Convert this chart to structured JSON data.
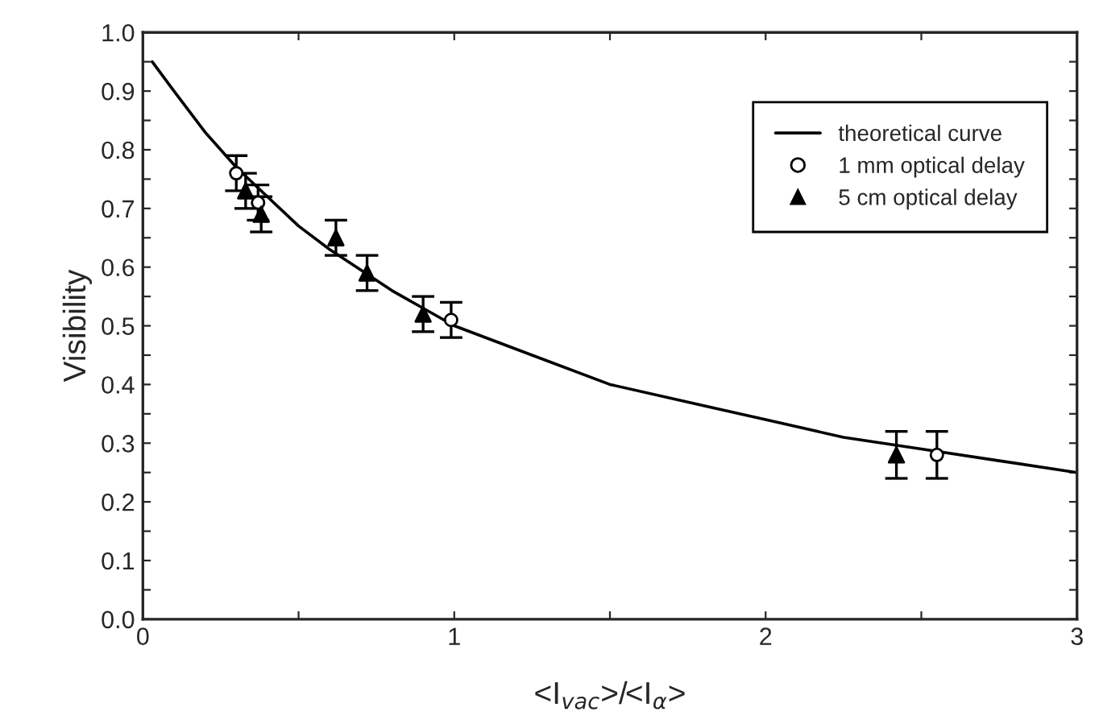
{
  "chart_data": {
    "type": "line",
    "xlabel": "<I$_{vac}$>/<I$_{α}$>",
    "ylabel": "Visibility",
    "xlim": [
      0,
      3
    ],
    "ylim": [
      0,
      1.0
    ],
    "xticks": [
      0,
      {
        "value": 0.5,
        "label": null
      },
      1,
      {
        "value": 1.5,
        "label": null
      },
      2,
      {
        "value": 2.5,
        "label": null
      },
      3
    ],
    "yticks": [
      {
        "value": 0,
        "label": "0.0"
      },
      {
        "value": 0.05,
        "label": null
      },
      0.1,
      {
        "value": 0.15,
        "label": null
      },
      0.2,
      {
        "value": 0.25,
        "label": null
      },
      0.3,
      {
        "value": 0.35,
        "label": null
      },
      0.4,
      {
        "value": 0.45,
        "label": null
      },
      0.5,
      {
        "value": 0.55,
        "label": null
      },
      0.6,
      {
        "value": 0.65,
        "label": null
      },
      0.7,
      {
        "value": 0.75,
        "label": null
      },
      0.8,
      {
        "value": 0.85,
        "label": null
      },
      0.9,
      {
        "value": 0.95,
        "label": null
      },
      {
        "value": 1.0,
        "label": "1.0"
      }
    ],
    "grid": false,
    "legend": "top right",
    "series": [
      {
        "name": "theoretical curve",
        "color": "#000000",
        "marker": "none",
        "line_style": "solid",
        "x": [
          0.03,
          0.1,
          0.2,
          0.3,
          0.4,
          0.5,
          0.6,
          0.8,
          1.0,
          1.25,
          1.5,
          1.75,
          2.0,
          2.25,
          2.5,
          2.75,
          3.0
        ],
        "values": [
          0.95,
          0.9,
          0.83,
          0.77,
          0.72,
          0.67,
          0.63,
          0.56,
          0.5,
          0.45,
          0.4,
          0.37,
          0.34,
          0.31,
          0.29,
          0.27,
          0.25
        ]
      },
      {
        "name": "1 mm optical delay",
        "type": "scatter",
        "color": "#000000",
        "marker": "circle",
        "x": [
          0.3,
          0.37,
          0.99,
          2.55
        ],
        "values": [
          0.76,
          0.71,
          0.51,
          0.28
        ],
        "errors": [
          0.03,
          0.03,
          0.03,
          0.04
        ]
      },
      {
        "name": "5 cm optical delay",
        "type": "scatter",
        "color": "#000000",
        "marker": "triangle",
        "x": [
          0.33,
          0.38,
          0.62,
          0.72,
          0.9,
          2.42
        ],
        "values": [
          0.73,
          0.69,
          0.65,
          0.59,
          0.52,
          0.28
        ],
        "errors": [
          0.03,
          0.03,
          0.03,
          0.03,
          0.03,
          0.04
        ]
      }
    ]
  }
}
